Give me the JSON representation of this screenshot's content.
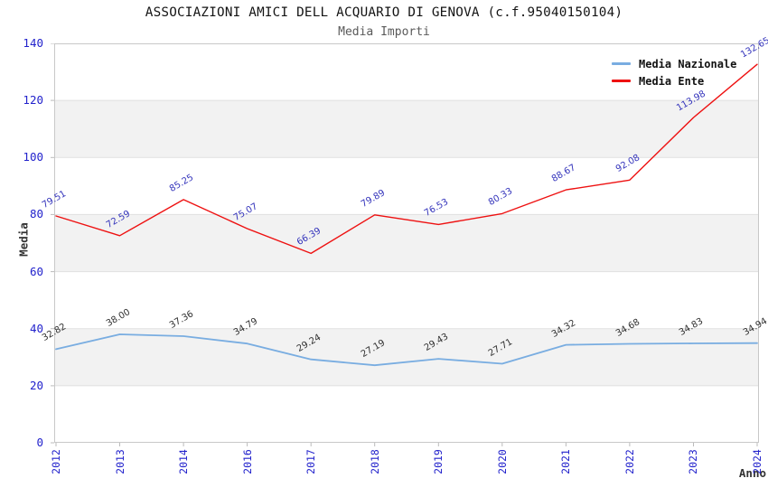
{
  "chart_data": {
    "type": "line",
    "title": "ASSOCIAZIONI AMICI DELL ACQUARIO DI GENOVA (c.f.95040150104)",
    "subtitle": "Media Importi",
    "xlabel": "Anno",
    "ylabel": "Media",
    "ylim": [
      0,
      140
    ],
    "y_ticks": [
      0,
      20,
      40,
      60,
      80,
      100,
      120,
      140
    ],
    "grid": true,
    "legend_position": "top-right",
    "categories": [
      "2012",
      "2013",
      "2014",
      "2016",
      "2017",
      "2018",
      "2019",
      "2020",
      "2021",
      "2022",
      "2023",
      "2024"
    ],
    "series": [
      {
        "name": "Media Nazionale",
        "color": "#79ade1",
        "label_color": "#303030",
        "line_width": 1.8,
        "values": [
          32.82,
          38.0,
          37.36,
          34.79,
          29.24,
          27.19,
          29.43,
          27.71,
          34.32,
          34.68,
          34.83,
          34.94
        ],
        "labels": [
          "32.82",
          "38.00",
          "37.36",
          "34.79",
          "29.24",
          "27.19",
          "29.43",
          "27.71",
          "34.32",
          "34.68",
          "34.83",
          "34.94"
        ]
      },
      {
        "name": "Media Ente",
        "color": "#ee1111",
        "label_color": "#3333bb",
        "line_width": 1.4,
        "values": [
          79.51,
          72.59,
          85.25,
          75.07,
          66.39,
          79.89,
          76.53,
          80.33,
          88.67,
          92.08,
          113.98,
          132.65
        ],
        "labels": [
          "79.51",
          "72.59",
          "85.25",
          "75.07",
          "66.39",
          "79.89",
          "76.53",
          "80.33",
          "88.67",
          "92.08",
          "113.98",
          "132.65"
        ]
      }
    ],
    "style": {
      "band_color": "#f2f2f2",
      "grid_color": "#e0e0e0",
      "frame_color": "#c8c8c8",
      "tick_mark_color": "#bbbbbb",
      "axis_tick_text_color": "#2222cc"
    }
  }
}
